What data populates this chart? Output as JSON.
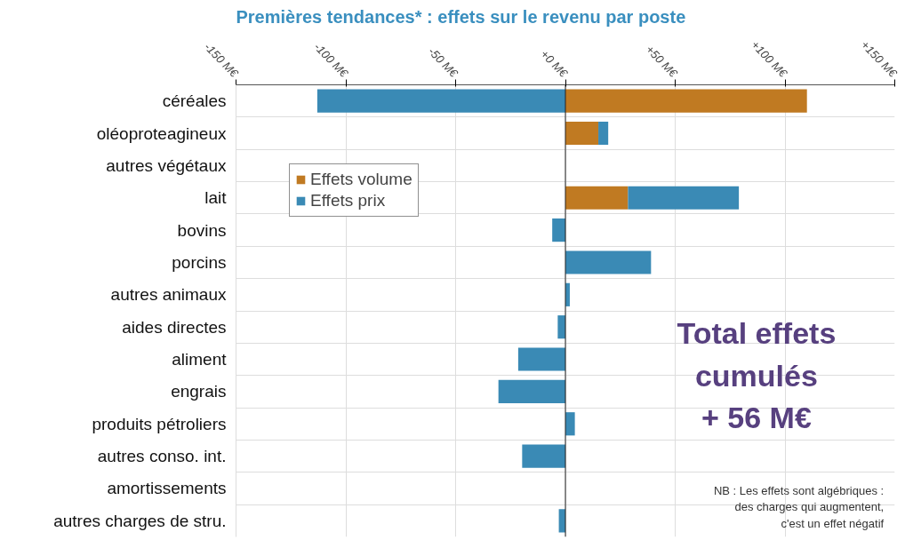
{
  "chart_data": {
    "type": "bar",
    "orientation": "horizontal",
    "stacked": true,
    "title": "Premières tendances* : effets sur le revenu par poste",
    "categories": [
      "céréales",
      "oléoproteagineux",
      "autres végétaux",
      "lait",
      "bovins",
      "porcins",
      "autres animaux",
      "aides directes",
      "aliment",
      "engrais",
      "produits pétroliers",
      "autres conso. int.",
      "amortissements",
      "autres charges de stru."
    ],
    "series": [
      {
        "name": "Effets volume",
        "color": "#c07a22",
        "values": [
          110,
          15,
          null,
          28.5,
          null,
          null,
          null,
          null,
          null,
          null,
          null,
          null,
          null,
          null
        ]
      },
      {
        "name": "Effets prix",
        "color": "#3a8ab5",
        "values": [
          -113,
          4.5,
          null,
          50.5,
          -6,
          39,
          2,
          -3.5,
          -21.5,
          -30.5,
          4.3,
          -19.7,
          null,
          -3
        ]
      }
    ],
    "xlim": [
      -150,
      150
    ],
    "xticks": [
      {
        "value": -150,
        "label": "-150 M€"
      },
      {
        "value": -100,
        "label": "-100 M€"
      },
      {
        "value": -50,
        "label": "-50 M€"
      },
      {
        "value": 0,
        "label": "+0 M€"
      },
      {
        "value": 50,
        "label": "+50 M€"
      },
      {
        "value": 100,
        "label": "+100 M€"
      },
      {
        "value": 150,
        "label": "+150 M€"
      }
    ],
    "grid": true,
    "legend": "top left",
    "annotations": [
      "Total effets\ncumulés\n+ 56 M€",
      "NB : Les effets sont algébriques :\ndes charges qui augmentent,\nc'est un effet négatif"
    ]
  }
}
